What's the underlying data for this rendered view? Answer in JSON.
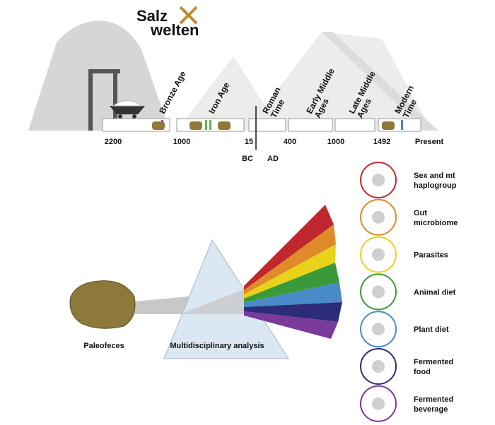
{
  "logo": {
    "line1": "Salz",
    "line2": "welten"
  },
  "eras": [
    [
      "Bronze Age"
    ],
    [
      "Iron Age"
    ],
    [
      "Roman",
      "Time"
    ],
    [
      "Early Middle",
      "Ages"
    ],
    [
      "Late Middle",
      "Ages"
    ],
    [
      "Modern",
      "Time"
    ]
  ],
  "timeline": {
    "ticks": [
      "2200",
      "1000",
      "15",
      "400",
      "1000",
      "1492",
      "Present"
    ],
    "bc": "BC",
    "ad": "AD"
  },
  "source": "Paleofeces",
  "prism": "Multidisciplinary analysis",
  "analyses": [
    [
      "Sex and mt",
      "haplogroup"
    ],
    [
      "Gut",
      "microbiome"
    ],
    [
      "Parasites"
    ],
    [
      "Animal diet"
    ],
    [
      "Plant diet"
    ],
    [
      "Fermented",
      "food"
    ],
    [
      "Fermented",
      "beverage"
    ]
  ]
}
